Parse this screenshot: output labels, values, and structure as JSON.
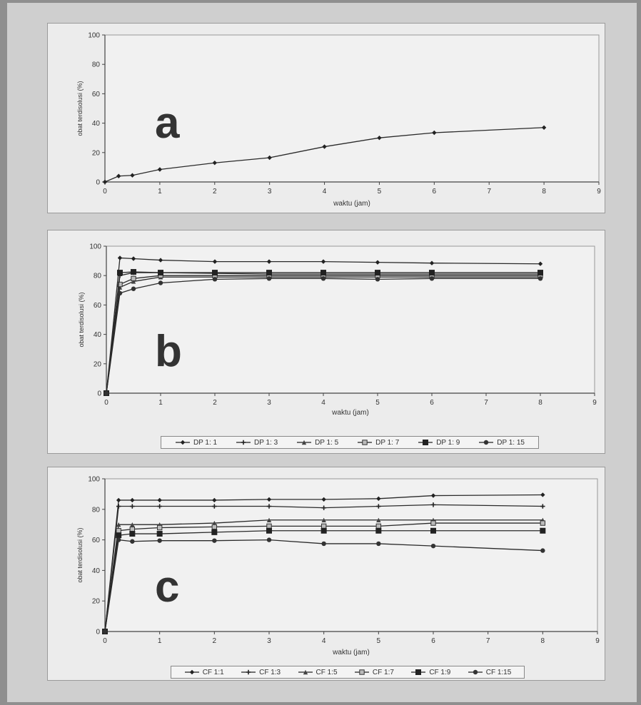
{
  "chart_data": [
    {
      "type": "line",
      "panel_label": "a",
      "xlabel": "waktu (jam)",
      "ylabel": "obat terdisolusi (%)",
      "xlim": [
        0,
        9
      ],
      "ylim": [
        0,
        100
      ],
      "xticks": [
        "0",
        "1",
        "2",
        "3",
        "4",
        "5",
        "6",
        "7",
        "8",
        "9"
      ],
      "yticks": [
        "0",
        "20",
        "40",
        "60",
        "80",
        "100"
      ],
      "grid": false,
      "x": [
        0,
        0.25,
        0.5,
        1,
        2,
        3,
        4,
        5,
        6,
        8
      ],
      "series": [
        {
          "name": "",
          "values": [
            0,
            4,
            4.5,
            8.5,
            13,
            16.5,
            24,
            30,
            33.5,
            37
          ]
        }
      ]
    },
    {
      "type": "line",
      "panel_label": "b",
      "xlabel": "waktu (jam)",
      "ylabel": "obat terdisolusi (%)",
      "xlim": [
        0,
        9
      ],
      "ylim": [
        0,
        100
      ],
      "xticks": [
        "0",
        "1",
        "2",
        "3",
        "4",
        "5",
        "6",
        "7",
        "8",
        "9"
      ],
      "yticks": [
        "0",
        "20",
        "40",
        "60",
        "80",
        "100"
      ],
      "grid": false,
      "legend_position": "bottom",
      "x": [
        0,
        0.25,
        0.5,
        1,
        2,
        3,
        4,
        5,
        6,
        8
      ],
      "series": [
        {
          "name": "DP 1: 1",
          "values": [
            0,
            92,
            91.5,
            90.5,
            89.5,
            89.5,
            89.5,
            89,
            88.5,
            88
          ]
        },
        {
          "name": "DP 1: 3",
          "values": [
            0,
            80,
            82,
            82,
            81.5,
            81,
            81,
            81,
            81,
            81
          ]
        },
        {
          "name": "DP 1: 5",
          "values": [
            0,
            72,
            76,
            79,
            79,
            79,
            79,
            79,
            79,
            79
          ]
        },
        {
          "name": "DP 1: 7",
          "values": [
            0,
            74,
            78,
            80,
            80,
            80,
            80,
            80,
            80,
            80
          ]
        },
        {
          "name": "DP 1: 9",
          "values": [
            0,
            82,
            82.5,
            82,
            82,
            82,
            82,
            82,
            82,
            82
          ]
        },
        {
          "name": "DP 1: 15",
          "values": [
            0,
            68,
            71,
            75,
            77.5,
            78,
            78,
            77.5,
            78,
            78
          ]
        }
      ]
    },
    {
      "type": "line",
      "panel_label": "c",
      "xlabel": "waktu (jam)",
      "ylabel": "obat terdisolusi (%)",
      "xlim": [
        0,
        9
      ],
      "ylim": [
        0,
        100
      ],
      "xticks": [
        "0",
        "1",
        "2",
        "3",
        "4",
        "5",
        "6",
        "7",
        "8",
        "9"
      ],
      "yticks": [
        "0",
        "20",
        "40",
        "60",
        "80",
        "100"
      ],
      "grid": false,
      "legend_position": "bottom",
      "x": [
        0,
        0.25,
        0.5,
        1,
        2,
        3,
        4,
        5,
        6,
        8
      ],
      "series": [
        {
          "name": "CF 1:1",
          "values": [
            0,
            86,
            86,
            86,
            86,
            86.5,
            86.5,
            87,
            89,
            89.5
          ]
        },
        {
          "name": "CF 1:3",
          "values": [
            0,
            82,
            82,
            82,
            82,
            82,
            81,
            82,
            83,
            82
          ]
        },
        {
          "name": "CF 1:5",
          "values": [
            0,
            70,
            70,
            70,
            71,
            73,
            73,
            73,
            73,
            73
          ]
        },
        {
          "name": "CF 1:7",
          "values": [
            0,
            66,
            67,
            68,
            68.5,
            69,
            69,
            69,
            71,
            71
          ]
        },
        {
          "name": "CF 1:9",
          "values": [
            0,
            63,
            64,
            64,
            65,
            66,
            66,
            66,
            66,
            66
          ]
        },
        {
          "name": "CF 1:15",
          "values": [
            0,
            60,
            59,
            59.5,
            59.5,
            60,
            57.5,
            57.5,
            56,
            53
          ]
        }
      ]
    }
  ]
}
